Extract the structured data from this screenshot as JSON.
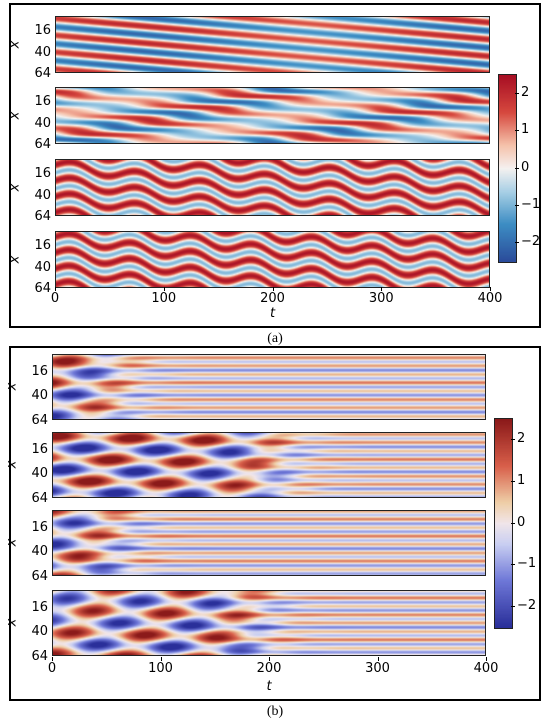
{
  "chart_data": [
    {
      "type": "heatmap",
      "panel_label": "(a)",
      "colormap": "RdBu_r",
      "subplots": 4,
      "x_ticks": [
        "0",
        "100",
        "200",
        "300",
        "400"
      ],
      "xlim": [
        0,
        400
      ],
      "xlabel": "t",
      "y_ticks": [
        "16",
        "40",
        "64"
      ],
      "ylim": [
        64,
        0
      ],
      "ylabel": "x",
      "colorbar_ticks": [
        "2",
        "1",
        "0",
        "−1",
        "−2"
      ],
      "colorbar_range": [
        -2.5,
        2.5
      ],
      "colors": {
        "max": "#b2182b",
        "zero": "#f7f7f7",
        "min": "#2166ac"
      }
    },
    {
      "type": "heatmap",
      "panel_label": "(b)",
      "colormap": "seismic-like",
      "subplots": 4,
      "x_ticks": [
        "0",
        "100",
        "200",
        "300",
        "400"
      ],
      "xlim": [
        0,
        400
      ],
      "xlabel": "t",
      "y_ticks": [
        "16",
        "40",
        "64"
      ],
      "ylim": [
        64,
        0
      ],
      "ylabel": "x",
      "colorbar_ticks": [
        "2",
        "1",
        "0",
        "−1",
        "−2"
      ],
      "colorbar_range": [
        -2.5,
        2.5
      ],
      "colors": {
        "max": "#8b1a1a",
        "zero": "#f2e6e8",
        "min": "#2a2f9a"
      }
    }
  ]
}
